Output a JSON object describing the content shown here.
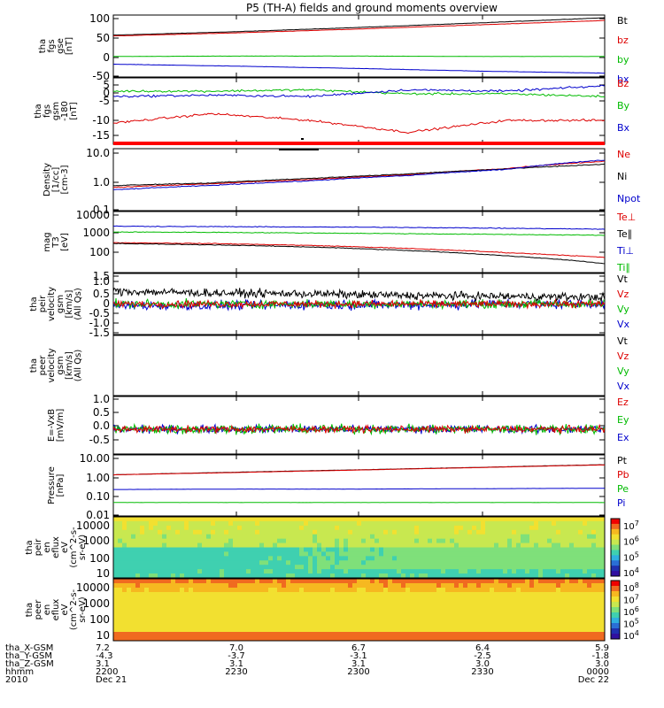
{
  "title": "P5 (TH-A) fields and ground moments overview",
  "chart_data": [
    {
      "type": "line",
      "panel": "fgs_gse",
      "ylabel": [
        "tha",
        "fgs",
        "gse",
        "[nT]"
      ],
      "yticks": [
        "100",
        "50",
        "0",
        "-50"
      ],
      "ylim": [
        -55,
        105
      ],
      "x": [
        "2200",
        "2230",
        "2300",
        "2330",
        "0000"
      ],
      "legend": [
        "Bt",
        "bz",
        "by",
        "bx"
      ],
      "series": [
        {
          "name": "Bt",
          "color": "#000000",
          "values": [
            53,
            62,
            73,
            85,
            98
          ]
        },
        {
          "name": "bz",
          "color": "#dd0000",
          "values": [
            51,
            59,
            69,
            80,
            91
          ]
        },
        {
          "name": "by",
          "color": "#00bb00",
          "values": [
            -2,
            -1,
            -1,
            -2,
            -2
          ]
        },
        {
          "name": "bx",
          "color": "#0000cc",
          "values": [
            -22,
            -27,
            -33,
            -40,
            -45
          ]
        }
      ]
    },
    {
      "type": "line",
      "panel": "fgs_gsm_detrended",
      "ylabel": [
        "tha",
        "fgs",
        "gsm",
        "-180",
        "[nT]"
      ],
      "yticks": [
        "5",
        "0",
        "-5",
        "-10",
        "-15"
      ],
      "ylim": [
        -18,
        7
      ],
      "legend": [
        "Bz",
        "By",
        "Bx"
      ],
      "series": [
        {
          "name": "Bz",
          "color": "#dd0000",
          "values": [
            -10,
            -6.5,
            -9,
            -13.5,
            -9,
            -9
          ]
        },
        {
          "name": "By",
          "color": "#00bb00",
          "values": [
            2,
            2,
            2.5,
            1,
            1,
            0
          ]
        },
        {
          "name": "Bx",
          "color": "#0000cc",
          "values": [
            0,
            0.5,
            0,
            2.5,
            2,
            4
          ]
        }
      ]
    },
    {
      "type": "line",
      "panel": "density",
      "ylabel": [
        "Density",
        "[1/cc]",
        "[cm-3]"
      ],
      "yticks": [
        "10.0",
        "1.0",
        "0.1"
      ],
      "yscale": "log",
      "ylim": [
        0.1,
        12
      ],
      "legend": [
        "Ne",
        "Ni",
        "Npot"
      ],
      "series": [
        {
          "name": "Ne",
          "color": "#dd0000",
          "values": [
            0.6,
            0.8,
            1.1,
            1.6,
            2.6,
            4.5
          ]
        },
        {
          "name": "Ni",
          "color": "#000000",
          "values": [
            0.7,
            0.85,
            1.2,
            1.7,
            2.5,
            3.6
          ]
        },
        {
          "name": "Npot",
          "color": "#0000cc",
          "values": [
            0.5,
            0.7,
            1.0,
            1.5,
            2.4,
            5.0
          ]
        }
      ]
    },
    {
      "type": "line",
      "panel": "temperature",
      "ylabel": [
        "mag",
        "T3",
        "[eV]"
      ],
      "yticks": [
        "10000",
        "1000",
        "100"
      ],
      "yscale": "log",
      "ylim": [
        50,
        11000
      ],
      "legend": [
        "Te⊥",
        "Te∥",
        "Ti⊥",
        "Ti∥"
      ],
      "series": [
        {
          "name": "Te⊥",
          "color": "#dd0000",
          "values": [
            700,
            650,
            550,
            420,
            290,
            190
          ]
        },
        {
          "name": "Te∥",
          "color": "#000000",
          "values": [
            650,
            580,
            480,
            350,
            220,
            110
          ]
        },
        {
          "name": "Ti⊥",
          "color": "#0000cc",
          "values": [
            3000,
            2900,
            2800,
            2700,
            2500,
            2300
          ]
        },
        {
          "name": "Ti∥",
          "color": "#00bb00",
          "values": [
            1800,
            1750,
            1650,
            1550,
            1450,
            1350
          ]
        }
      ]
    },
    {
      "type": "line",
      "panel": "peir_velocity",
      "ylabel": [
        "tha",
        "peir",
        "velocity",
        "gsm",
        "[km/s]",
        "(All Qs)"
      ],
      "yticks": [
        "1.5",
        "1.0",
        "0.5",
        "0",
        "-0.5",
        "-1.0",
        "-1.5"
      ],
      "ylim": [
        -1.8,
        1.8
      ],
      "legend": [
        "Vt",
        "Vz",
        "Vy",
        "Vx"
      ],
      "series": [
        {
          "name": "Vt",
          "color": "#000000",
          "values": [
            0.6,
            0.5,
            0.45,
            0.35,
            0.3,
            0.25
          ]
        },
        {
          "name": "Vz",
          "color": "#dd0000",
          "values": [
            0,
            0,
            0,
            0,
            0,
            0
          ]
        },
        {
          "name": "Vy",
          "color": "#00bb00",
          "values": [
            0,
            0,
            0,
            0,
            0,
            0
          ]
        },
        {
          "name": "Vx",
          "color": "#0000cc",
          "values": [
            -0.1,
            -0.1,
            -0.05,
            -0.05,
            0,
            0
          ]
        }
      ]
    },
    {
      "type": "line",
      "panel": "peer_velocity",
      "ylabel": [
        "tha",
        "peer",
        "velocity",
        "gsm",
        "[km/s]",
        "(All Qs)"
      ],
      "yticks": [],
      "legend": [
        "Vt",
        "Vz",
        "Vy",
        "Vx"
      ],
      "series": []
    },
    {
      "type": "line",
      "panel": "efield",
      "ylabel": [
        "E=-VxB",
        "[mV/m]"
      ],
      "yticks": [
        "1.0",
        "0.5",
        "0.0",
        "-0.5"
      ],
      "ylim": [
        -0.8,
        1.05
      ],
      "legend": [
        "Ez",
        "Ey",
        "Ex"
      ],
      "series": [
        {
          "name": "Ez",
          "color": "#dd0000",
          "values": [
            0,
            0,
            0,
            0,
            0
          ]
        },
        {
          "name": "Ey",
          "color": "#00bb00",
          "values": [
            0,
            0,
            0,
            0,
            0
          ]
        },
        {
          "name": "Ex",
          "color": "#0000cc",
          "values": [
            0,
            0,
            0,
            0,
            0
          ]
        }
      ]
    },
    {
      "type": "line",
      "panel": "pressure",
      "ylabel": [
        "Pressure",
        "[nPa]"
      ],
      "yticks": [
        "10.00",
        "1.00",
        "0.10",
        "0.01"
      ],
      "yscale": "log",
      "ylim": [
        0.008,
        12
      ],
      "legend": [
        "Pt",
        "Pb",
        "Pe",
        "Pi"
      ],
      "series": [
        {
          "name": "Pt",
          "color": "#000000",
          "values": [
            1.1,
            1.5,
            2.0,
            2.7,
            3.7
          ]
        },
        {
          "name": "Pb",
          "color": "#dd0000",
          "values": [
            1.1,
            1.45,
            1.95,
            2.65,
            3.6
          ]
        },
        {
          "name": "Pe",
          "color": "#00bb00",
          "values": [
            0.04,
            0.04,
            0.04,
            0.04,
            0.04
          ]
        },
        {
          "name": "Pi",
          "color": "#0000cc",
          "values": [
            0.19,
            0.2,
            0.2,
            0.21,
            0.22
          ]
        }
      ]
    },
    {
      "type": "heatmap",
      "panel": "peir_en_eflux",
      "ylabel": [
        "tha",
        "peir",
        "en",
        "eflux",
        "eV",
        "(cm^2-s-",
        "sr-eV)"
      ],
      "yticks": [
        "10000",
        "1000",
        "100",
        "10"
      ],
      "colorbar_ticks": [
        "10^7",
        "10^6",
        "10^5",
        "10^4"
      ]
    },
    {
      "type": "heatmap",
      "panel": "peer_en_eflux",
      "ylabel": [
        "tha",
        "peer",
        "en",
        "eflux",
        "eV",
        "(cm^2-s-",
        "sr-eV)"
      ],
      "yticks": [
        "10000",
        "1000",
        "100",
        "10"
      ],
      "colorbar_ticks": [
        "10^8",
        "10^7",
        "10^6",
        "10^5",
        "10^4"
      ]
    }
  ],
  "footer": {
    "row_labels": [
      "tha_X-GSM",
      "tha_Y-GSM",
      "tha_Z-GSM",
      "hhmm",
      "2010"
    ],
    "columns": [
      [
        "7.2",
        "-4.3",
        "3.1",
        "2200",
        "Dec 21"
      ],
      [
        "7.0",
        "-3.7",
        "3.1",
        "2230",
        ""
      ],
      [
        "6.7",
        "-3.1",
        "3.1",
        "2300",
        ""
      ],
      [
        "6.4",
        "-2.5",
        "3.0",
        "2330",
        ""
      ],
      [
        "5.9",
        "-1.8",
        "3.0",
        "0000",
        "Dec 22"
      ]
    ]
  }
}
